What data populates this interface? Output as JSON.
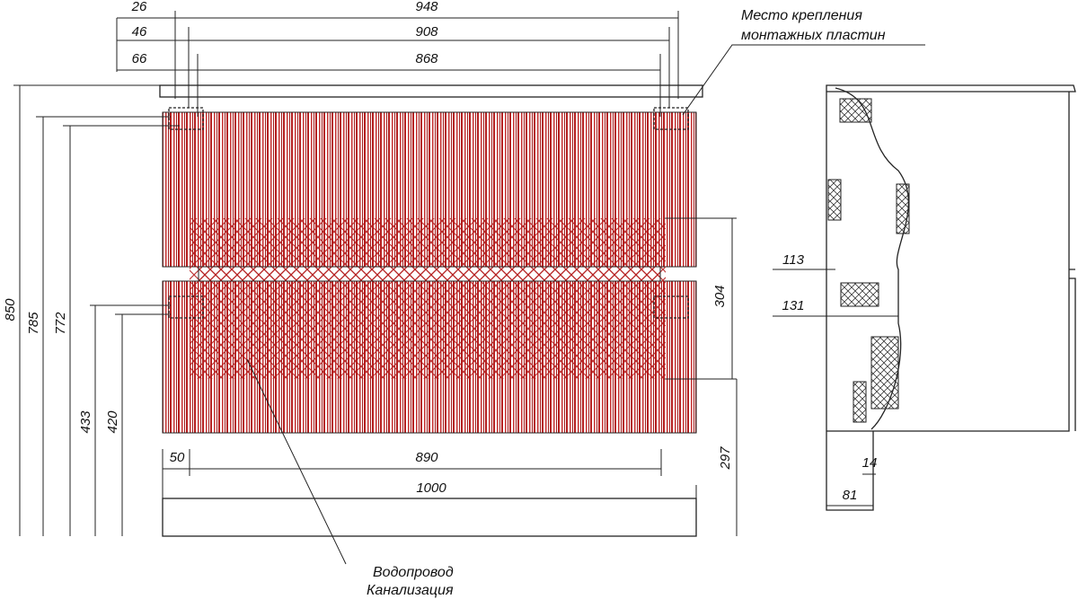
{
  "front_view": {
    "dimensions": [
      "26",
      "948",
      "46",
      "908",
      "66",
      "868",
      "850",
      "785",
      "772",
      "433",
      "420",
      "304",
      "297",
      "50",
      "890",
      "1000"
    ]
  },
  "side_view": {
    "dimensions": [
      "113",
      "131",
      "14",
      "81"
    ]
  },
  "notes": {
    "mounting": [
      "Место крепления",
      "монтажных пластин"
    ],
    "plumbing": [
      "Водопровод",
      "Канализация"
    ]
  }
}
